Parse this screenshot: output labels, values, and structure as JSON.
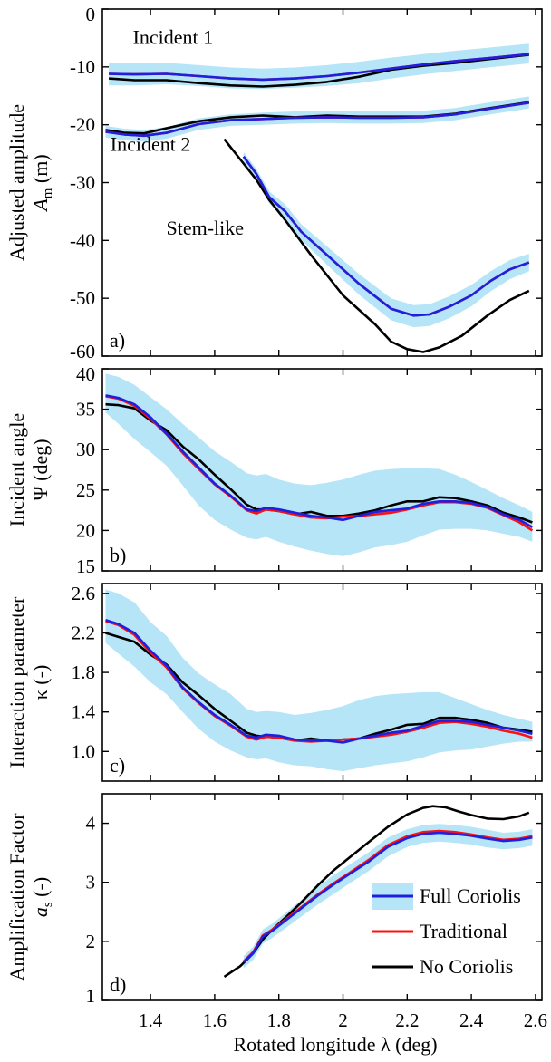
{
  "xlabel": "Rotated longitude λ (deg)",
  "x_ticks": [
    "1.4",
    "1.6",
    "1.8",
    "2",
    "2.2",
    "2.4",
    "2.6"
  ],
  "x_tick_values": [
    1.4,
    1.6,
    1.8,
    2.0,
    2.2,
    2.4,
    2.6
  ],
  "xlim": [
    1.25,
    2.62
  ],
  "colors": {
    "full_coriolis": "#1f1fe0",
    "traditional": "#ff1010",
    "no_coriolis": "#000000",
    "band": "#b5e5f7"
  },
  "legend": {
    "items": [
      {
        "label": "Full Coriolis",
        "color": "#1f1fe0",
        "band": "#b5e5f7"
      },
      {
        "label": "Traditional",
        "color": "#ff1010"
      },
      {
        "label": "No Coriolis",
        "color": "#000000"
      }
    ],
    "placement": "bottom-right of panel d"
  },
  "chart_data": [
    {
      "panel": "a)",
      "type": "line",
      "ylabel_line1": "Adjusted amplitude",
      "ylabel_line2": "A",
      "ylabel_sub": "m",
      "ylabel_unit": " (m)",
      "ylim": [
        -60,
        0
      ],
      "y_ticks": [
        0,
        -10,
        -20,
        -30,
        -40,
        -50,
        -60
      ],
      "y_tick_labels": [
        "0",
        "-10",
        "-20",
        "-30",
        "-40",
        "-50",
        "-60"
      ],
      "annotations": [
        {
          "text": "Incident 1",
          "x": 1.47,
          "y": -6
        },
        {
          "text": "Incident 2",
          "x": 1.4,
          "y": -24.5
        },
        {
          "text": "Stem-like",
          "x": 1.57,
          "y": -39
        }
      ],
      "groups": [
        {
          "name": "Incident 1",
          "x": [
            1.27,
            1.35,
            1.45,
            1.55,
            1.65,
            1.75,
            1.85,
            1.95,
            2.05,
            2.15,
            2.25,
            2.35,
            2.45,
            2.58
          ],
          "full": [
            -11.2,
            -11.3,
            -11.2,
            -11.6,
            -12.0,
            -12.2,
            -12.0,
            -11.6,
            -11.0,
            -10.3,
            -9.6,
            -9.0,
            -8.5,
            -7.8
          ],
          "band_lo": [
            -13.2,
            -13.2,
            -13.0,
            -13.3,
            -13.7,
            -13.8,
            -13.6,
            -13.3,
            -12.8,
            -12.0,
            -11.3,
            -10.7,
            -10.1,
            -9.4
          ],
          "band_hi": [
            -9.3,
            -9.3,
            -9.3,
            -9.7,
            -10.1,
            -10.3,
            -10.1,
            -9.7,
            -9.1,
            -8.4,
            -7.8,
            -7.2,
            -6.7,
            -6.0
          ],
          "no_coriolis": [
            -12.0,
            -12.3,
            -12.3,
            -12.8,
            -13.2,
            -13.4,
            -13.1,
            -12.6,
            -11.7,
            -10.5,
            -9.8,
            -9.3,
            -8.7,
            -7.9
          ]
        },
        {
          "name": "Incident 2",
          "x": [
            1.26,
            1.32,
            1.38,
            1.45,
            1.55,
            1.65,
            1.75,
            1.85,
            1.95,
            2.05,
            2.15,
            2.25,
            2.35,
            2.45,
            2.58
          ],
          "full": [
            -21.2,
            -21.7,
            -21.9,
            -21.4,
            -19.9,
            -19.2,
            -19.0,
            -18.8,
            -18.7,
            -18.8,
            -18.8,
            -18.7,
            -18.2,
            -17.3,
            -16.2
          ],
          "band_lo": [
            -22.2,
            -22.7,
            -22.9,
            -22.4,
            -20.9,
            -20.2,
            -20.0,
            -19.8,
            -19.7,
            -19.8,
            -19.8,
            -19.7,
            -19.2,
            -18.3,
            -17.2
          ],
          "band_hi": [
            -20.2,
            -20.7,
            -20.9,
            -20.4,
            -18.9,
            -18.2,
            -17.9,
            -17.7,
            -17.6,
            -17.7,
            -17.7,
            -17.6,
            -17.1,
            -16.2,
            -15.1
          ],
          "no_coriolis": [
            -20.9,
            -21.4,
            -21.5,
            -20.6,
            -19.4,
            -18.7,
            -18.4,
            -18.7,
            -18.4,
            -18.6,
            -18.6,
            -18.6,
            -18.1,
            -17.2,
            -16.1
          ]
        },
        {
          "name": "Stem-like",
          "x_full": [
            1.69,
            1.73,
            1.77,
            1.82,
            1.87,
            1.95,
            2.05,
            2.15,
            2.22,
            2.27,
            2.33,
            2.4,
            2.46,
            2.52,
            2.58
          ],
          "full": [
            -25.5,
            -28.5,
            -32.5,
            -35.0,
            -38.5,
            -42.5,
            -47.5,
            -51.8,
            -53.0,
            -52.8,
            -51.5,
            -49.5,
            -47.0,
            -45.0,
            -43.8
          ],
          "band_lo": [
            -26.5,
            -29.5,
            -33.6,
            -36.3,
            -39.9,
            -44.2,
            -49.4,
            -53.8,
            -55.0,
            -54.8,
            -53.5,
            -51.4,
            -48.8,
            -46.7,
            -45.3
          ],
          "band_hi": [
            -24.7,
            -27.6,
            -31.5,
            -33.8,
            -37.2,
            -41.0,
            -45.8,
            -50.0,
            -51.2,
            -51.0,
            -49.7,
            -47.7,
            -45.3,
            -43.4,
            -42.3
          ],
          "x_nc": [
            1.63,
            1.68,
            1.73,
            1.77,
            1.82,
            1.9,
            2.0,
            2.1,
            2.15,
            2.2,
            2.25,
            2.3,
            2.37,
            2.45,
            2.52,
            2.58
          ],
          "no_coriolis": [
            -22.5,
            -26.0,
            -29.5,
            -33.0,
            -36.5,
            -42.5,
            -49.5,
            -54.5,
            -57.5,
            -58.8,
            -59.3,
            -58.5,
            -56.5,
            -53.0,
            -50.3,
            -48.7
          ]
        }
      ]
    },
    {
      "panel": "b)",
      "type": "line",
      "ylabel_line1": "Incident angle",
      "ylabel_line2": "Ψ (deg)",
      "ylim": [
        15,
        40
      ],
      "y_ticks": [
        15,
        20,
        25,
        30,
        35,
        40
      ],
      "y_tick_labels": [
        "15",
        "20",
        "25",
        "30",
        "35",
        "40"
      ],
      "x": [
        1.26,
        1.3,
        1.35,
        1.4,
        1.45,
        1.5,
        1.55,
        1.6,
        1.65,
        1.7,
        1.73,
        1.76,
        1.8,
        1.85,
        1.9,
        1.95,
        2.0,
        2.05,
        2.1,
        2.15,
        2.2,
        2.25,
        2.3,
        2.35,
        2.4,
        2.45,
        2.5,
        2.55,
        2.59
      ],
      "full": [
        36.7,
        36.4,
        35.6,
        34.0,
        32.0,
        29.8,
        27.8,
        25.8,
        24.3,
        22.6,
        22.4,
        22.8,
        22.6,
        22.2,
        21.8,
        21.6,
        21.3,
        21.8,
        22.3,
        22.5,
        22.7,
        23.3,
        23.6,
        23.6,
        23.4,
        22.9,
        22.0,
        21.3,
        20.4
      ],
      "band_lo": [
        34.6,
        33.2,
        31.3,
        29.7,
        28.0,
        25.6,
        23.1,
        21.3,
        20.1,
        19.1,
        18.9,
        19.2,
        18.6,
        18.0,
        17.5,
        17.1,
        16.8,
        17.3,
        17.9,
        18.2,
        18.6,
        19.4,
        20.1,
        20.2,
        20.2,
        20.0,
        19.6,
        19.2,
        18.6
      ],
      "band_hi": [
        39.4,
        39.0,
        38.0,
        36.5,
        35.0,
        33.2,
        31.5,
        29.8,
        28.5,
        27.1,
        26.8,
        27.0,
        26.3,
        25.8,
        25.6,
        25.9,
        26.3,
        26.9,
        27.4,
        27.6,
        27.7,
        27.7,
        27.6,
        26.9,
        26.0,
        25.0,
        24.0,
        23.1,
        22.3
      ],
      "traditional": [
        36.6,
        36.3,
        35.4,
        33.8,
        31.9,
        29.6,
        27.6,
        25.7,
        24.2,
        22.5,
        22.1,
        22.6,
        22.4,
        22.0,
        21.6,
        21.5,
        21.7,
        21.8,
        22.0,
        22.2,
        22.6,
        23.1,
        23.5,
        23.5,
        23.3,
        22.8,
        21.9,
        21.0,
        20.0
      ],
      "no_coriolis": [
        35.6,
        35.5,
        35.1,
        33.6,
        32.4,
        30.4,
        28.8,
        26.9,
        25.1,
        23.2,
        22.6,
        22.6,
        22.4,
        22.0,
        22.3,
        21.8,
        21.8,
        22.1,
        22.5,
        23.1,
        23.6,
        23.6,
        24.1,
        24.0,
        23.6,
        23.1,
        22.2,
        21.6,
        21.0
      ]
    },
    {
      "panel": "c)",
      "type": "line",
      "ylabel_line1": "Interaction parameter",
      "ylabel_line2": "κ (-)",
      "ylim": [
        0.7,
        2.7
      ],
      "y_ticks": [
        1.0,
        1.4,
        1.8,
        2.2,
        2.6
      ],
      "y_tick_labels": [
        "1.0",
        "1.4",
        "1.8",
        "2.2",
        "2.6"
      ],
      "x": [
        1.26,
        1.3,
        1.35,
        1.4,
        1.45,
        1.5,
        1.55,
        1.6,
        1.65,
        1.7,
        1.73,
        1.76,
        1.8,
        1.85,
        1.9,
        1.95,
        2.0,
        2.05,
        2.1,
        2.15,
        2.2,
        2.25,
        2.3,
        2.35,
        2.4,
        2.45,
        2.5,
        2.55,
        2.59
      ],
      "full": [
        2.33,
        2.29,
        2.2,
        2.02,
        1.87,
        1.65,
        1.5,
        1.37,
        1.27,
        1.16,
        1.14,
        1.17,
        1.16,
        1.12,
        1.11,
        1.11,
        1.09,
        1.13,
        1.16,
        1.19,
        1.21,
        1.26,
        1.31,
        1.31,
        1.3,
        1.27,
        1.24,
        1.21,
        1.18
      ],
      "band_lo": [
        2.1,
        1.99,
        1.86,
        1.7,
        1.58,
        1.4,
        1.23,
        1.1,
        1.01,
        0.94,
        0.92,
        0.93,
        0.89,
        0.86,
        0.85,
        0.82,
        0.8,
        0.83,
        0.86,
        0.88,
        0.9,
        0.94,
        0.99,
        1.01,
        1.02,
        1.05,
        1.08,
        1.1,
        1.1
      ],
      "band_hi": [
        2.64,
        2.6,
        2.51,
        2.31,
        2.17,
        1.95,
        1.79,
        1.68,
        1.58,
        1.43,
        1.4,
        1.41,
        1.4,
        1.37,
        1.39,
        1.42,
        1.46,
        1.52,
        1.56,
        1.58,
        1.59,
        1.6,
        1.6,
        1.54,
        1.48,
        1.42,
        1.37,
        1.33,
        1.3
      ],
      "traditional": [
        2.32,
        2.28,
        2.18,
        2.0,
        1.85,
        1.64,
        1.49,
        1.36,
        1.26,
        1.15,
        1.12,
        1.15,
        1.14,
        1.11,
        1.1,
        1.11,
        1.12,
        1.13,
        1.15,
        1.17,
        1.2,
        1.24,
        1.29,
        1.3,
        1.28,
        1.25,
        1.21,
        1.18,
        1.14
      ],
      "no_coriolis": [
        2.2,
        2.16,
        2.11,
        1.98,
        1.88,
        1.7,
        1.57,
        1.43,
        1.31,
        1.19,
        1.16,
        1.15,
        1.14,
        1.11,
        1.13,
        1.11,
        1.12,
        1.13,
        1.18,
        1.22,
        1.27,
        1.28,
        1.34,
        1.34,
        1.32,
        1.29,
        1.24,
        1.22,
        1.2
      ]
    },
    {
      "panel": "d)",
      "type": "line",
      "ylabel_line1": "Amplification Factor",
      "ylabel_line2": "a",
      "ylabel_sub": "s",
      "ylabel_unit": " (-)",
      "ylim": [
        1,
        4.5
      ],
      "y_ticks": [
        1,
        2,
        3,
        4
      ],
      "y_tick_labels": [
        "1",
        "2",
        "3",
        "4"
      ],
      "x": [
        1.69,
        1.72,
        1.75,
        1.78,
        1.82,
        1.87,
        1.92,
        1.97,
        2.02,
        2.08,
        2.14,
        2.2,
        2.25,
        2.3,
        2.35,
        2.4,
        2.45,
        2.5,
        2.55,
        2.59
      ],
      "full": [
        1.65,
        1.8,
        2.08,
        2.18,
        2.35,
        2.56,
        2.77,
        2.96,
        3.14,
        3.35,
        3.6,
        3.75,
        3.82,
        3.84,
        3.82,
        3.79,
        3.74,
        3.7,
        3.72,
        3.76
      ],
      "band_lo": [
        1.55,
        1.69,
        1.96,
        2.06,
        2.22,
        2.42,
        2.62,
        2.8,
        2.98,
        3.19,
        3.44,
        3.6,
        3.67,
        3.69,
        3.67,
        3.64,
        3.59,
        3.56,
        3.58,
        3.62
      ],
      "band_hi": [
        1.75,
        1.91,
        2.2,
        2.3,
        2.48,
        2.7,
        2.92,
        3.12,
        3.3,
        3.51,
        3.76,
        3.9,
        3.97,
        3.99,
        3.97,
        3.94,
        3.89,
        3.84,
        3.86,
        3.9
      ],
      "traditional": [
        1.66,
        1.82,
        2.1,
        2.2,
        2.37,
        2.58,
        2.79,
        2.98,
        3.16,
        3.38,
        3.63,
        3.78,
        3.85,
        3.87,
        3.85,
        3.81,
        3.76,
        3.72,
        3.74,
        3.78
      ],
      "x_nc": [
        1.63,
        1.68,
        1.72,
        1.75,
        1.78,
        1.82,
        1.87,
        1.92,
        1.97,
        2.02,
        2.08,
        2.14,
        2.2,
        2.25,
        2.28,
        2.32,
        2.36,
        2.4,
        2.45,
        2.5,
        2.55,
        2.58
      ],
      "no_coriolis": [
        1.4,
        1.58,
        1.8,
        2.03,
        2.2,
        2.4,
        2.66,
        2.94,
        3.2,
        3.42,
        3.68,
        3.94,
        4.15,
        4.26,
        4.29,
        4.27,
        4.2,
        4.14,
        4.08,
        4.07,
        4.12,
        4.18
      ]
    }
  ]
}
